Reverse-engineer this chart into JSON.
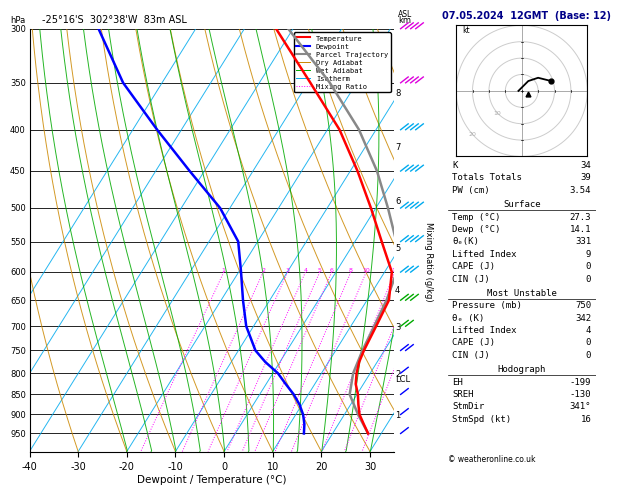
{
  "title_left": "-25°16'S  302°38'W  83m ASL",
  "title_right": "07.05.2024  12GMT  (Base: 12)",
  "xlabel": "Dewpoint / Temperature (°C)",
  "ylabel_mixing": "Mixing Ratio (g/kg)",
  "pressure_levels": [
    300,
    350,
    400,
    450,
    500,
    550,
    600,
    650,
    700,
    750,
    800,
    850,
    900,
    950
  ],
  "temp_ticks": [
    -40,
    -30,
    -20,
    -10,
    0,
    10,
    20,
    30
  ],
  "pressure_min": 300,
  "pressure_max": 1000,
  "skew_factor": 45,
  "legend_items": [
    {
      "label": "Temperature",
      "color": "#ff0000",
      "lw": 1.5,
      "ls": "solid"
    },
    {
      "label": "Dewpoint",
      "color": "#0000ff",
      "lw": 1.5,
      "ls": "solid"
    },
    {
      "label": "Parcel Trajectory",
      "color": "#888888",
      "lw": 1.5,
      "ls": "solid"
    },
    {
      "label": "Dry Adiabat",
      "color": "#cc8800",
      "lw": 0.7,
      "ls": "solid"
    },
    {
      "label": "Wet Adiabat",
      "color": "#00aa00",
      "lw": 0.7,
      "ls": "solid"
    },
    {
      "label": "Isotherm",
      "color": "#00aaee",
      "lw": 0.7,
      "ls": "solid"
    },
    {
      "label": "Mixing Ratio",
      "color": "#ff00ff",
      "lw": 0.7,
      "ls": "dotted"
    }
  ],
  "km_labels": [
    1,
    2,
    3,
    4,
    5,
    6,
    7,
    8
  ],
  "km_pressures": [
    900,
    800,
    700,
    630,
    560,
    490,
    420,
    360
  ],
  "lcl_pressure": 812,
  "mixing_ratio_values": [
    1,
    2,
    3,
    4,
    5,
    6,
    8,
    10,
    15,
    20,
    25
  ],
  "temp_profile": {
    "pressure": [
      950,
      925,
      900,
      875,
      850,
      825,
      800,
      775,
      750,
      700,
      650,
      600,
      550,
      500,
      450,
      400,
      350,
      300
    ],
    "temp": [
      27.3,
      25.2,
      23.1,
      21.6,
      20.2,
      18.4,
      17.2,
      16.3,
      15.8,
      15.2,
      14.5,
      11.5,
      5.5,
      -1.0,
      -8.5,
      -17.5,
      -29.5,
      -43.5
    ]
  },
  "dewp_profile": {
    "pressure": [
      950,
      925,
      900,
      875,
      850,
      825,
      800,
      775,
      750,
      700,
      650,
      600,
      550,
      500,
      450,
      400,
      350,
      300
    ],
    "temp": [
      14.1,
      13.0,
      11.5,
      9.5,
      7.0,
      4.0,
      1.0,
      -3.0,
      -6.5,
      -11.5,
      -15.5,
      -19.5,
      -24.0,
      -32.0,
      -43.0,
      -55.0,
      -68.0,
      -80.0
    ]
  },
  "parcel_profile": {
    "pressure": [
      950,
      900,
      850,
      800,
      750,
      700,
      650,
      600,
      550,
      500,
      450,
      400,
      350,
      300
    ],
    "temp": [
      27.3,
      22.8,
      18.5,
      16.5,
      15.5,
      14.8,
      14.0,
      12.5,
      8.5,
      2.5,
      -4.5,
      -13.5,
      -25.5,
      -41.0
    ]
  },
  "stats": {
    "K": 34,
    "Totals_Totals": 39,
    "PW_cm": "3.54",
    "Surface_Temp": "27.3",
    "Surface_Dewp": "14.1",
    "Surface_theta_e": 331,
    "Surface_LI": 9,
    "Surface_CAPE": 0,
    "Surface_CIN": 0,
    "MU_Pressure": 750,
    "MU_theta_e": 342,
    "MU_LI": 4,
    "MU_CAPE": 0,
    "MU_CIN": 0,
    "EH": -199,
    "SREH": -130,
    "StmDir": "341°",
    "StmSpd_kt": 16
  },
  "hodo_u": [
    -1,
    0,
    2,
    5,
    9
  ],
  "hodo_v": [
    0,
    1,
    3,
    4,
    3
  ],
  "wind_barb_pressures": [
    300,
    350,
    400,
    450,
    500,
    550,
    600,
    650,
    700,
    750,
    800,
    850,
    900,
    950
  ],
  "wind_barb_colors": [
    "#dd00dd",
    "#dd00dd",
    "#00aaee",
    "#00aaee",
    "#00aaee",
    "#00aaee",
    "#00aaee",
    "#00aa00",
    "#00aa00",
    "#0000ff",
    "#0000ff",
    "#0000ff",
    "#0000ff",
    "#0000ff"
  ],
  "wind_barb_spd": [
    35,
    30,
    30,
    25,
    20,
    20,
    18,
    15,
    12,
    10,
    8,
    6,
    5,
    5
  ]
}
